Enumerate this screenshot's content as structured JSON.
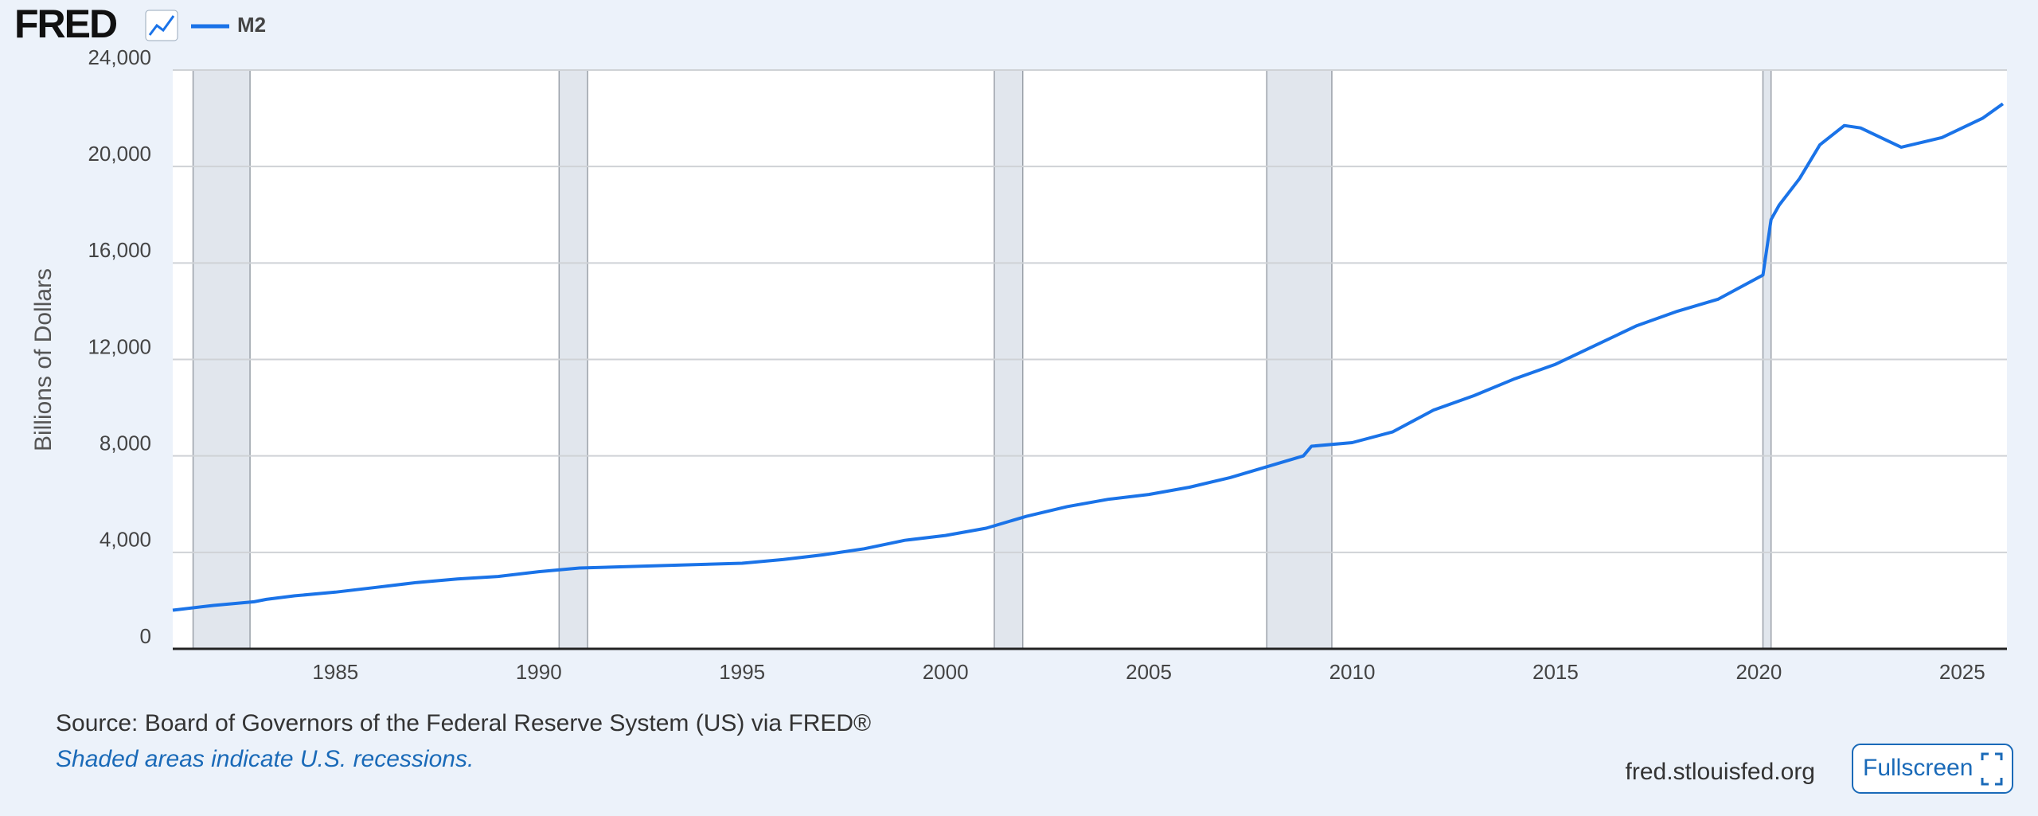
{
  "header": {
    "logo": "FRED"
  },
  "chart_data": {
    "type": "line",
    "ylabel": "Billions of Dollars",
    "x": [
      1981.0,
      1982.0,
      1983.0,
      1983.3,
      1984,
      1985,
      1986,
      1987,
      1988,
      1989,
      1990,
      1991,
      1992,
      1993,
      1994,
      1995,
      1996,
      1997,
      1998,
      1999,
      2000,
      2001,
      2002,
      2003,
      2004,
      2005,
      2006,
      2007,
      2008,
      2008.8,
      2009,
      2010,
      2011,
      2012,
      2013,
      2014,
      2015,
      2016,
      2017,
      2018,
      2019,
      2020.1,
      2020.3,
      2020.5,
      2021,
      2021.5,
      2022.1,
      2022.5,
      2023,
      2023.5,
      2024,
      2024.5,
      2025,
      2025.5,
      2026
    ],
    "series": [
      {
        "name": "M2",
        "color": "#1a73e8",
        "values": [
          1600,
          1800,
          1950,
          2050,
          2200,
          2350,
          2550,
          2750,
          2900,
          3000,
          3200,
          3350,
          3400,
          3450,
          3500,
          3550,
          3700,
          3900,
          4150,
          4500,
          4700,
          5000,
          5500,
          5900,
          6200,
          6400,
          6700,
          7100,
          7600,
          8000,
          8400,
          8550,
          9000,
          9900,
          10500,
          11200,
          11800,
          12600,
          13400,
          14000,
          14500,
          15500,
          17800,
          18400,
          19500,
          20900,
          21700,
          21600,
          21200,
          20800,
          21000,
          21200,
          21600,
          22000,
          22600
        ]
      }
    ],
    "xlim": [
      1981.0,
      2026.1
    ],
    "xticks": [
      1985,
      1990,
      1995,
      2000,
      2005,
      2010,
      2015,
      2020,
      2025
    ],
    "ylim": [
      0,
      24000
    ],
    "yticks": [
      0,
      {
        "value": 4000,
        "label": "4,000"
      },
      {
        "value": 8000,
        "label": "8,000"
      },
      {
        "value": 12000,
        "label": "12,000"
      },
      {
        "value": 16000,
        "label": "16,000"
      },
      {
        "value": 20000,
        "label": "20,000"
      },
      {
        "value": 24000,
        "label": "24,000"
      }
    ],
    "grid": true,
    "recessions": [
      [
        1981.5,
        1982.9
      ],
      [
        1990.5,
        1991.2
      ],
      [
        2001.2,
        2001.9
      ],
      [
        2007.9,
        2009.5
      ],
      [
        2020.1,
        2020.3
      ]
    ]
  },
  "footer": {
    "source": "Source: Board of Governors of the Federal Reserve System (US) via FRED®",
    "note": "Shaded areas indicate U.S. recessions.",
    "site": "fred.stlouisfed.org",
    "button": "Fullscreen"
  }
}
